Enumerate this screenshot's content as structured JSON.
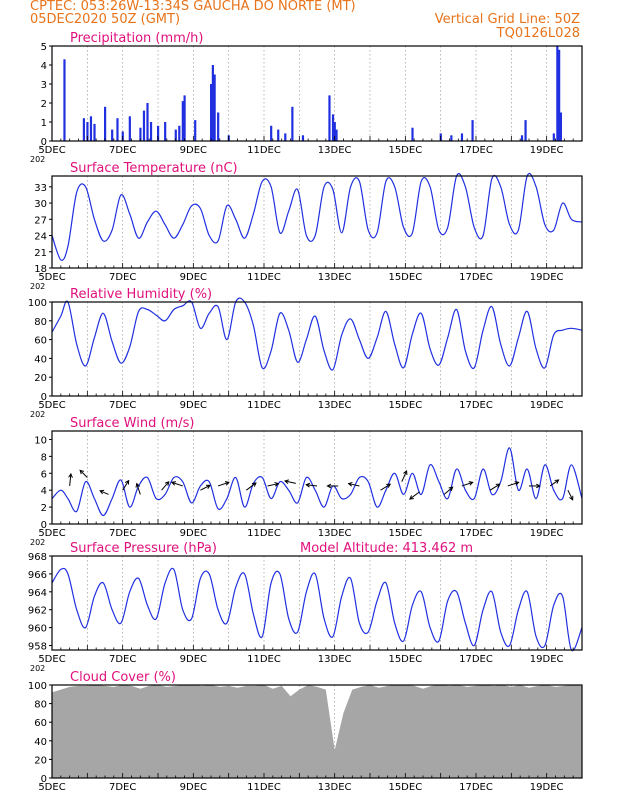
{
  "header": {
    "line1": "CPTEC:   053:26W-13:34S   GAUCHA DO NORTE (MT)",
    "line2": "05DEC2020 50Z (GMT)",
    "grid_note": "Vertical Grid Line: 50Z",
    "model_id": "TQ0126L028"
  },
  "colors": {
    "header": "#e8731a",
    "title": "#e0107c",
    "series": "#2030e0",
    "cloud": "#a6a6a6",
    "arrow": "#000000"
  },
  "x_axis": {
    "tick_labels": [
      "5DEC",
      "7DEC",
      "9DEC",
      "11DEC",
      "13DEC",
      "15DEC",
      "17DEC",
      "19DEC"
    ],
    "tick_days": [
      0,
      2,
      4,
      6,
      8,
      10,
      12,
      14
    ],
    "range_days": [
      0,
      15
    ],
    "stub_label": "202"
  },
  "chart_data": [
    {
      "type": "bar",
      "title": "Precipitation (mm/h)",
      "ylim": [
        0,
        5
      ],
      "yticks": [
        0,
        1,
        2,
        3,
        4,
        5
      ],
      "x_days": [
        0.35,
        0.9,
        1.0,
        1.1,
        1.2,
        1.5,
        1.7,
        1.85,
        2.0,
        2.2,
        2.5,
        2.6,
        2.7,
        2.8,
        3.0,
        3.2,
        3.5,
        3.6,
        3.7,
        3.75,
        4.05,
        4.5,
        4.55,
        4.6,
        4.7,
        5.0,
        6.2,
        6.4,
        6.6,
        6.8,
        7.1,
        7.85,
        7.95,
        8.0,
        8.05,
        10.2,
        11.0,
        11.3,
        11.6,
        11.9,
        13.3,
        13.4,
        14.2,
        14.3,
        14.35,
        14.4
      ],
      "values": [
        4.3,
        1.2,
        1.0,
        1.3,
        0.9,
        1.8,
        0.6,
        1.2,
        0.5,
        1.3,
        0.7,
        1.6,
        2.0,
        1.0,
        0.8,
        1.0,
        0.6,
        0.8,
        2.1,
        2.4,
        1.1,
        3.0,
        4.0,
        3.5,
        1.5,
        0.3,
        0.8,
        0.6,
        0.4,
        1.8,
        0.3,
        2.4,
        1.4,
        1.0,
        0.6,
        0.7,
        0.4,
        0.3,
        0.4,
        1.1,
        0.3,
        1.1,
        0.4,
        5.0,
        4.8,
        1.5
      ]
    },
    {
      "type": "line",
      "title": "Surface Temperature (nC)",
      "ylim": [
        18,
        35
      ],
      "yticks": [
        18,
        21,
        24,
        27,
        30,
        33
      ],
      "x_days": [
        0,
        0.25,
        0.45,
        0.7,
        0.95,
        1.2,
        1.45,
        1.7,
        1.95,
        2.2,
        2.45,
        2.7,
        2.95,
        3.2,
        3.45,
        3.7,
        3.95,
        4.2,
        4.45,
        4.7,
        4.95,
        5.2,
        5.45,
        5.7,
        5.95,
        6.2,
        6.45,
        6.7,
        6.95,
        7.2,
        7.45,
        7.7,
        7.95,
        8.2,
        8.45,
        8.7,
        8.95,
        9.2,
        9.45,
        9.7,
        9.95,
        10.2,
        10.45,
        10.7,
        10.95,
        11.2,
        11.45,
        11.7,
        11.95,
        12.2,
        12.45,
        12.7,
        12.95,
        13.2,
        13.45,
        13.7,
        13.95,
        14.2,
        14.45,
        14.7,
        15
      ],
      "values": [
        24,
        19.5,
        22,
        32,
        33,
        27,
        23,
        25,
        31.5,
        28,
        23.5,
        26.5,
        28.5,
        26,
        23.5,
        26,
        29.5,
        29,
        24,
        23,
        29.5,
        27,
        23.5,
        28,
        34,
        33,
        24.5,
        28.5,
        32.5,
        24,
        24,
        33,
        32.5,
        24.5,
        33,
        34,
        25,
        24.5,
        34,
        33,
        25.5,
        24.5,
        34,
        33,
        25,
        25.5,
        35,
        33,
        25.5,
        24,
        34.5,
        33,
        26,
        25,
        35,
        33,
        26,
        25,
        30,
        27,
        26.5
      ]
    },
    {
      "type": "line",
      "title": "Relative Humidity (%)",
      "ylim": [
        0,
        100
      ],
      "yticks": [
        0,
        20,
        40,
        60,
        80,
        100
      ],
      "x_days": [
        0,
        0.25,
        0.45,
        0.7,
        0.95,
        1.2,
        1.45,
        1.7,
        1.95,
        2.2,
        2.45,
        2.7,
        2.95,
        3.2,
        3.45,
        3.7,
        3.95,
        4.2,
        4.45,
        4.7,
        4.95,
        5.2,
        5.45,
        5.7,
        5.95,
        6.2,
        6.45,
        6.7,
        6.95,
        7.2,
        7.45,
        7.7,
        7.95,
        8.2,
        8.45,
        8.7,
        8.95,
        9.2,
        9.45,
        9.7,
        9.95,
        10.2,
        10.45,
        10.7,
        10.95,
        11.2,
        11.45,
        11.7,
        11.95,
        12.2,
        12.45,
        12.7,
        12.95,
        13.2,
        13.45,
        13.7,
        13.95,
        14.2,
        14.45,
        14.7,
        15
      ],
      "values": [
        68,
        85,
        100,
        55,
        32,
        62,
        88,
        58,
        35,
        52,
        90,
        92,
        86,
        80,
        92,
        96,
        100,
        72,
        88,
        95,
        60,
        100,
        100,
        75,
        30,
        48,
        88,
        70,
        36,
        60,
        85,
        48,
        28,
        65,
        82,
        60,
        40,
        62,
        90,
        55,
        30,
        66,
        88,
        50,
        33,
        62,
        92,
        48,
        30,
        70,
        95,
        55,
        32,
        62,
        90,
        50,
        30,
        65,
        70,
        72,
        70
      ]
    },
    {
      "type": "line",
      "title": "Surface Wind (m/s)",
      "ylim": [
        0,
        11
      ],
      "yticks": [
        0,
        2,
        4,
        6,
        8,
        10
      ],
      "x_days": [
        0,
        0.25,
        0.45,
        0.7,
        0.95,
        1.2,
        1.45,
        1.7,
        1.95,
        2.2,
        2.45,
        2.7,
        2.95,
        3.2,
        3.45,
        3.7,
        3.95,
        4.2,
        4.45,
        4.7,
        4.95,
        5.2,
        5.45,
        5.7,
        5.95,
        6.2,
        6.45,
        6.7,
        6.95,
        7.2,
        7.45,
        7.7,
        7.95,
        8.2,
        8.45,
        8.7,
        8.95,
        9.2,
        9.45,
        9.7,
        9.95,
        10.2,
        10.45,
        10.7,
        10.95,
        11.2,
        11.45,
        11.7,
        11.95,
        12.2,
        12.45,
        12.7,
        12.95,
        13.2,
        13.45,
        13.7,
        13.95,
        14.2,
        14.45,
        14.7,
        15
      ],
      "values": [
        3,
        4,
        3,
        1.5,
        5,
        3,
        1,
        3,
        5.2,
        2,
        4.5,
        5.5,
        3,
        3.5,
        5.5,
        5,
        2.5,
        4.5,
        5,
        1.8,
        3,
        5.5,
        2,
        4.8,
        5.5,
        3,
        5,
        4,
        2.5,
        5.5,
        4,
        2,
        4.5,
        3,
        3.5,
        5.5,
        5,
        2,
        4,
        6,
        3.5,
        6,
        3.5,
        7,
        5,
        3,
        6.5,
        4,
        3,
        6.5,
        3.5,
        5,
        9,
        4,
        6.5,
        3,
        7,
        4,
        3,
        7,
        3
      ],
      "arrows": [
        {
          "day": 0.5,
          "speed": 4.5,
          "dir": [
            0.1,
            -1
          ]
        },
        {
          "day": 1.0,
          "speed": 5.5,
          "dir": [
            -0.6,
            -0.6
          ]
        },
        {
          "day": 1.6,
          "speed": 3.5,
          "dir": [
            -0.7,
            -0.3
          ]
        },
        {
          "day": 2.0,
          "speed": 4,
          "dir": [
            0.5,
            -0.8
          ]
        },
        {
          "day": 2.5,
          "speed": 3.5,
          "dir": [
            -0.3,
            -0.9
          ]
        },
        {
          "day": 3.1,
          "speed": 4,
          "dir": [
            0.6,
            -0.7
          ]
        },
        {
          "day": 3.7,
          "speed": 4.5,
          "dir": [
            -0.9,
            -0.3
          ]
        },
        {
          "day": 4.2,
          "speed": 4,
          "dir": [
            0.8,
            -0.4
          ]
        },
        {
          "day": 4.7,
          "speed": 4.5,
          "dir": [
            0.9,
            -0.3
          ]
        },
        {
          "day": 5.5,
          "speed": 4,
          "dir": [
            0.8,
            -0.6
          ]
        },
        {
          "day": 6.1,
          "speed": 4.5,
          "dir": [
            0.9,
            -0.2
          ]
        },
        {
          "day": 6.9,
          "speed": 4.8,
          "dir": [
            -0.9,
            -0.2
          ]
        },
        {
          "day": 7.5,
          "speed": 4.5,
          "dir": [
            -0.9,
            -0.1
          ]
        },
        {
          "day": 8.1,
          "speed": 4.5,
          "dir": [
            -0.9,
            0
          ]
        },
        {
          "day": 8.7,
          "speed": 4.5,
          "dir": [
            -0.9,
            -0.2
          ]
        },
        {
          "day": 9.3,
          "speed": 4,
          "dir": [
            0.8,
            -0.5
          ]
        },
        {
          "day": 9.9,
          "speed": 5,
          "dir": [
            0.4,
            -0.9
          ]
        },
        {
          "day": 10.4,
          "speed": 3.8,
          "dir": [
            -0.8,
            0.6
          ]
        },
        {
          "day": 11.1,
          "speed": 3.5,
          "dir": [
            0.7,
            -0.6
          ]
        },
        {
          "day": 11.6,
          "speed": 4.5,
          "dir": [
            0.9,
            -0.3
          ]
        },
        {
          "day": 12.4,
          "speed": 4,
          "dir": [
            0.8,
            -0.5
          ]
        },
        {
          "day": 12.9,
          "speed": 4.5,
          "dir": [
            0.9,
            -0.3
          ]
        },
        {
          "day": 13.5,
          "speed": 4.5,
          "dir": [
            0.9,
            0
          ]
        },
        {
          "day": 14.1,
          "speed": 4.5,
          "dir": [
            0.7,
            -0.5
          ]
        },
        {
          "day": 14.6,
          "speed": 4,
          "dir": [
            0.4,
            0.8
          ]
        }
      ]
    },
    {
      "type": "line",
      "title": "Surface Pressure (hPa)",
      "subtitle": "Model Altitude: 413.462  m",
      "ylim": [
        957.5,
        968
      ],
      "yticks": [
        958,
        960,
        962,
        964,
        966,
        968
      ],
      "x_days": [
        0,
        0.25,
        0.45,
        0.7,
        0.95,
        1.2,
        1.45,
        1.7,
        1.95,
        2.2,
        2.45,
        2.7,
        2.95,
        3.2,
        3.45,
        3.7,
        3.95,
        4.2,
        4.45,
        4.7,
        4.95,
        5.2,
        5.45,
        5.7,
        5.95,
        6.2,
        6.45,
        6.7,
        6.95,
        7.2,
        7.45,
        7.7,
        7.95,
        8.2,
        8.45,
        8.7,
        8.95,
        9.2,
        9.45,
        9.7,
        9.95,
        10.2,
        10.45,
        10.7,
        10.95,
        11.2,
        11.45,
        11.7,
        11.95,
        12.2,
        12.45,
        12.7,
        12.95,
        13.2,
        13.45,
        13.7,
        13.95,
        14.2,
        14.45,
        14.7,
        15
      ],
      "values": [
        965,
        966.5,
        966,
        962,
        960,
        963.5,
        965,
        962,
        960.5,
        964,
        965.5,
        962.5,
        961,
        965,
        966.5,
        962,
        961,
        965.5,
        966,
        962,
        960.5,
        964.5,
        966,
        961.5,
        959,
        965,
        966,
        961,
        959.5,
        964,
        966,
        961,
        959,
        963.5,
        965.5,
        960.5,
        959.5,
        963,
        965,
        960.5,
        958.5,
        962.5,
        964,
        960,
        958.5,
        963,
        964,
        960.5,
        958,
        962,
        964,
        959.5,
        958,
        962,
        964,
        959,
        958,
        962.5,
        963.5,
        957.5,
        960
      ]
    },
    {
      "type": "area",
      "title": "Cloud Cover (%)",
      "ylim": [
        0,
        100
      ],
      "yticks": [
        0,
        20,
        40,
        60,
        80,
        100
      ],
      "x_days": [
        0,
        0.25,
        0.5,
        0.75,
        1.0,
        1.25,
        1.5,
        1.75,
        2.0,
        2.25,
        2.5,
        2.75,
        3.0,
        3.25,
        3.5,
        3.75,
        4.0,
        4.25,
        4.5,
        4.75,
        5.0,
        5.25,
        5.5,
        5.75,
        6.0,
        6.25,
        6.5,
        6.75,
        7.0,
        7.25,
        7.5,
        7.75,
        8.0,
        8.25,
        8.5,
        8.75,
        9.0,
        9.25,
        9.5,
        9.75,
        10.0,
        10.25,
        10.5,
        10.75,
        11.0,
        11.25,
        11.5,
        11.75,
        12.0,
        12.25,
        12.5,
        12.75,
        13.0,
        13.25,
        13.5,
        13.75,
        14.0,
        14.25,
        14.5,
        14.75,
        15.0
      ],
      "values": [
        92,
        95,
        98,
        99,
        99,
        100,
        99,
        98,
        100,
        99,
        96,
        99,
        100,
        98,
        99,
        100,
        100,
        99,
        100,
        98,
        99,
        97,
        99,
        99,
        100,
        96,
        99,
        88,
        95,
        100,
        98,
        95,
        30,
        70,
        95,
        98,
        100,
        97,
        99,
        100,
        100,
        99,
        96,
        99,
        100,
        99,
        100,
        98,
        99,
        100,
        99,
        100,
        98,
        100,
        97,
        99,
        100,
        98,
        99,
        100,
        99
      ]
    }
  ]
}
